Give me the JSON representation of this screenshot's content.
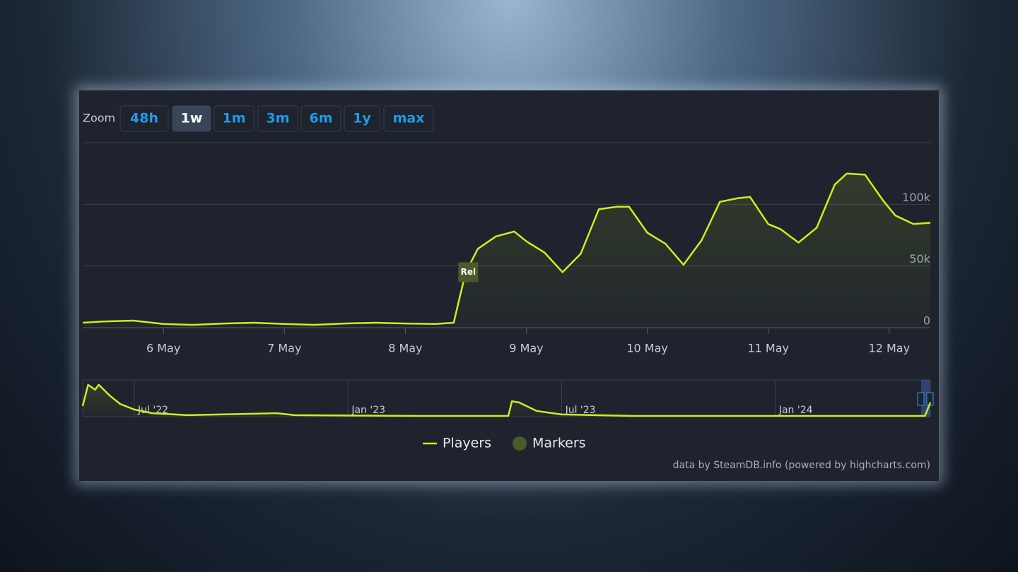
{
  "zoom": {
    "label": "Zoom",
    "buttons": [
      "48h",
      "1w",
      "1m",
      "3m",
      "6m",
      "1y",
      "max"
    ],
    "active": 1
  },
  "chart_data": {
    "type": "line",
    "xlim": [
      5.333,
      12.34
    ],
    "xticks": [
      {
        "value": 6,
        "label": "6 May"
      },
      {
        "value": 7,
        "label": "7 May"
      },
      {
        "value": 8,
        "label": "8 May"
      },
      {
        "value": 9,
        "label": "9 May"
      },
      {
        "value": 10,
        "label": "10 May"
      },
      {
        "value": 11,
        "label": "11 May"
      },
      {
        "value": 12,
        "label": "12 May"
      }
    ],
    "ylim": [
      0,
      150000
    ],
    "yticks": [
      {
        "value": 0,
        "label": "0"
      },
      {
        "value": 50000,
        "label": "50k"
      },
      {
        "value": 100000,
        "label": "100k"
      }
    ],
    "grid": true,
    "series": [
      {
        "name": "Players",
        "color": "#c8f01e",
        "x": [
          5.333,
          5.5,
          5.75,
          6.0,
          6.25,
          6.5,
          6.75,
          7.0,
          7.25,
          7.5,
          7.75,
          8.0,
          8.25,
          8.4,
          8.45,
          8.5,
          8.6,
          8.75,
          8.9,
          9.0,
          9.15,
          9.3,
          9.45,
          9.6,
          9.75,
          9.85,
          10.0,
          10.15,
          10.3,
          10.45,
          10.6,
          10.75,
          10.85,
          11.0,
          11.1,
          11.25,
          11.4,
          11.55,
          11.65,
          11.8,
          11.95,
          12.05,
          12.2,
          12.34
        ],
        "values": [
          4000,
          5000,
          5700,
          3000,
          2300,
          3400,
          4000,
          3000,
          2300,
          3400,
          4000,
          3400,
          3000,
          4000,
          25000,
          45000,
          64000,
          74000,
          78000,
          70000,
          61000,
          45000,
          60000,
          96000,
          98000,
          98000,
          77000,
          68000,
          51000,
          71000,
          102000,
          105000,
          106000,
          84000,
          80000,
          69000,
          81000,
          116000,
          125000,
          124000,
          103000,
          91000,
          84000,
          85000
        ]
      }
    ],
    "markers": {
      "name": "Markers",
      "color": "#4b5a2a",
      "points": [
        {
          "x": 8.52,
          "y": 45000,
          "label": "Rel"
        }
      ]
    },
    "navigator": {
      "xlim": [
        4.55,
        28.35
      ],
      "xticks": [
        {
          "value": 6,
          "label": "Jul '22"
        },
        {
          "value": 12,
          "label": "Jan '23"
        },
        {
          "value": 18,
          "label": "Jul '23"
        },
        {
          "value": 24,
          "label": "Jan '24"
        }
      ],
      "ylim": [
        0,
        150000
      ],
      "x": [
        4.55,
        4.7,
        4.9,
        5.0,
        5.3,
        5.6,
        6.0,
        6.5,
        7.5,
        10,
        10.5,
        14,
        16.5,
        16.6,
        16.8,
        17.3,
        18,
        20,
        28.2,
        28.35
      ],
      "values": [
        43000,
        130000,
        110000,
        130000,
        87000,
        52000,
        29000,
        14000,
        6000,
        14000,
        6000,
        3000,
        3000,
        63000,
        58000,
        23000,
        9000,
        3000,
        3000,
        58000
      ]
    },
    "credits": "data by SteamDB.info (powered by highcharts.com)"
  }
}
